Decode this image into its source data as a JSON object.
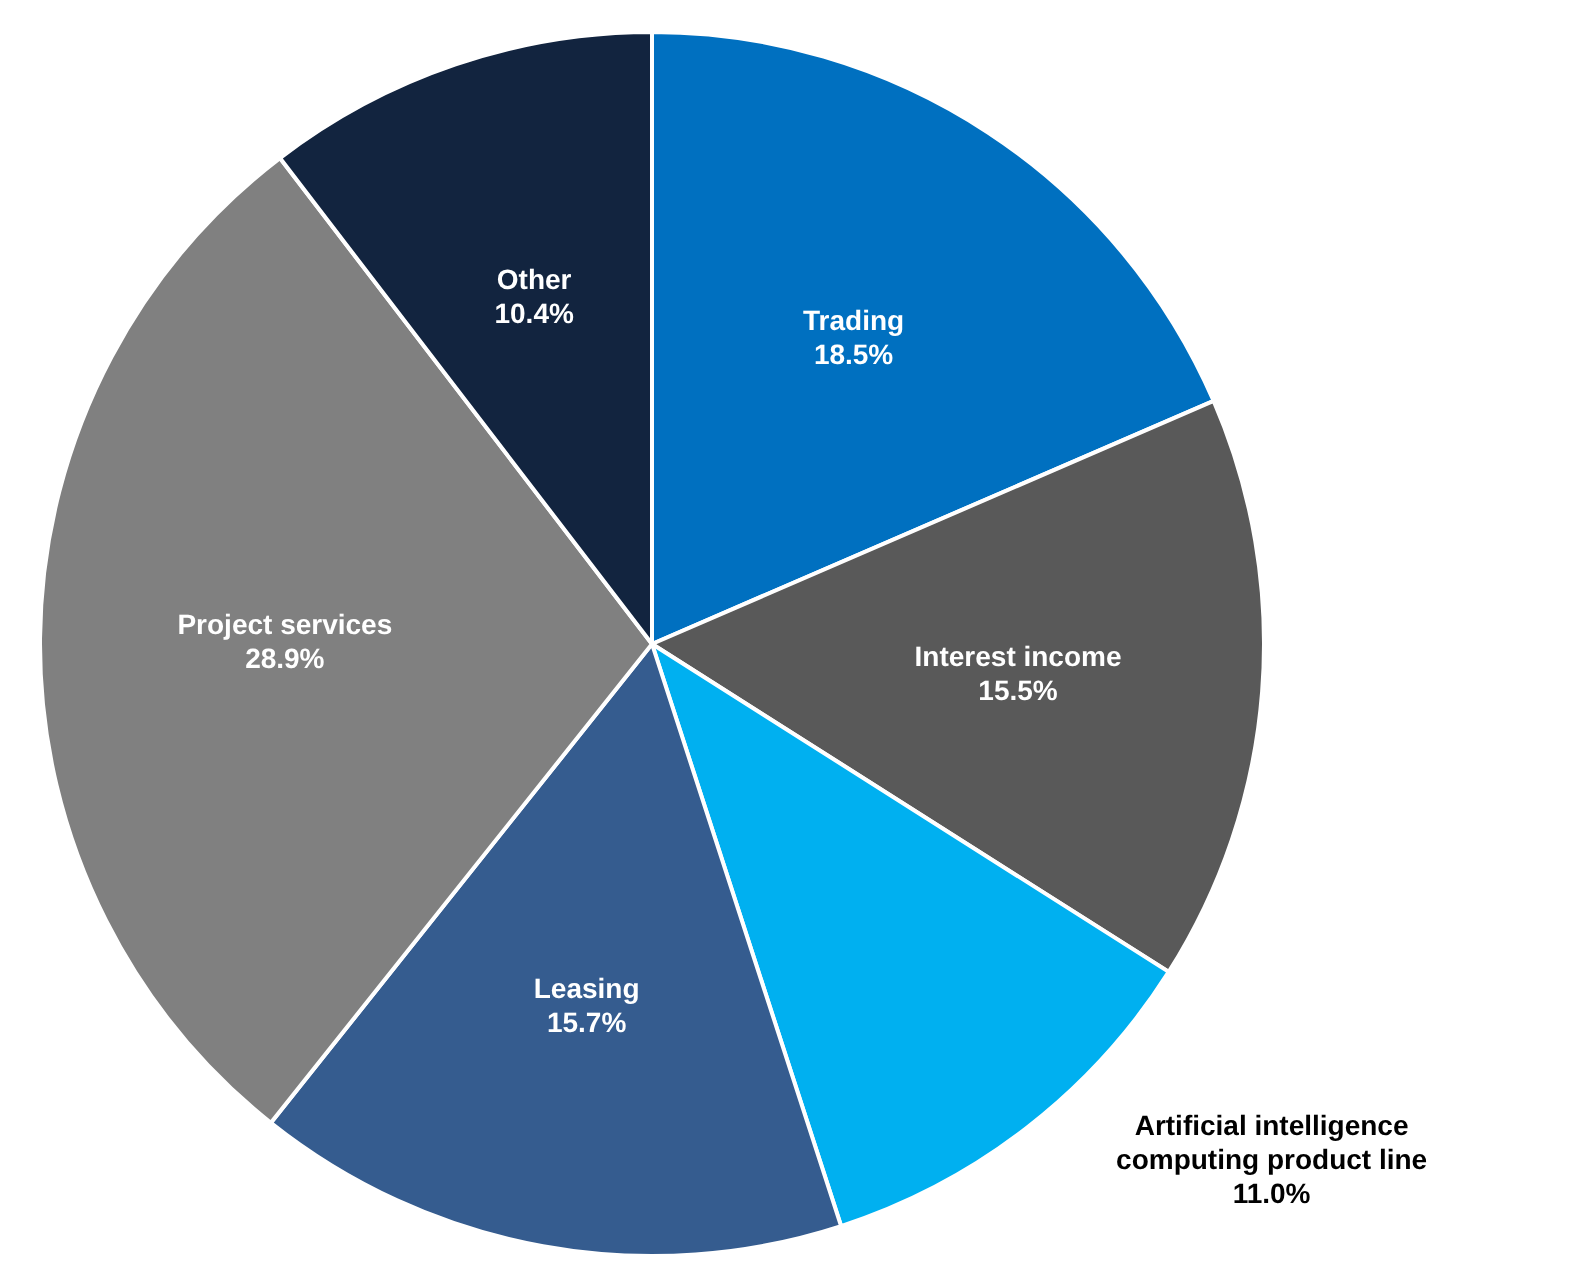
{
  "chart_data": {
    "type": "pie",
    "categories": [
      "Trading",
      "Interest income",
      "Artificial intelligence computing product line",
      "Leasing",
      "Project services",
      "Other"
    ],
    "values": [
      18.5,
      15.5,
      11.0,
      15.7,
      28.9,
      10.4
    ],
    "value_labels": [
      "18.5%",
      "15.5%",
      "11.0%",
      "15.7%",
      "28.9%",
      "10.4%"
    ],
    "colors": [
      "#0070c0",
      "#595959",
      "#00b0f0",
      "#355c8f",
      "#808080",
      "#12243f"
    ]
  }
}
